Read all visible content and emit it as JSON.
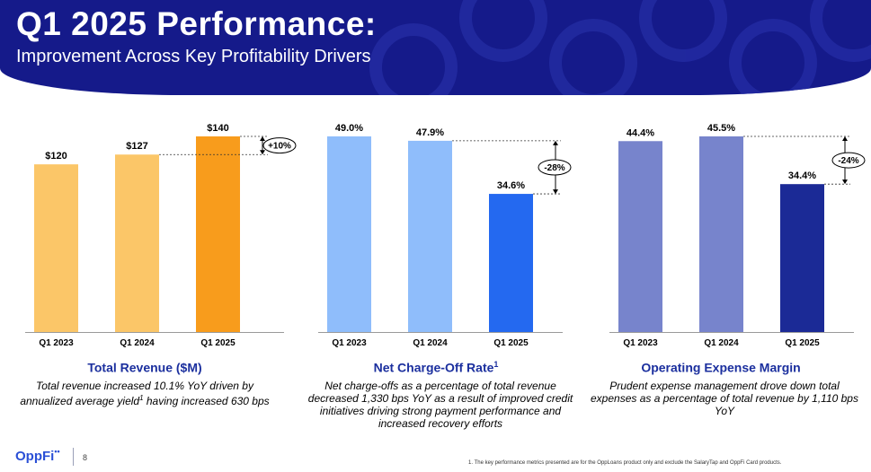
{
  "header": {
    "title": "Q1 2025 Performance:",
    "subtitle": "Improvement Across Key Profitability Drivers"
  },
  "chart_data": [
    {
      "type": "bar",
      "title": "Total Revenue ($M)",
      "title_sup": "",
      "categories": [
        "Q1 2023",
        "Q1 2024",
        "Q1 2025"
      ],
      "values": [
        120,
        127,
        140
      ],
      "labels": [
        "$120",
        "$127",
        "$140"
      ],
      "colors": [
        "#fbc668",
        "#fbc668",
        "#f89c1c"
      ],
      "change_label": "+10%",
      "change_from": 1,
      "change_to": 2,
      "ylim": [
        0,
        140
      ],
      "description_parts": [
        "Total revenue increased 10.1% YoY driven by annualized average yield",
        "1",
        " having increased 630 bps"
      ]
    },
    {
      "type": "bar",
      "title": "Net Charge-Off Rate",
      "title_sup": "1",
      "categories": [
        "Q1 2023",
        "Q1 2024",
        "Q1 2025"
      ],
      "values": [
        49.0,
        47.9,
        34.6
      ],
      "labels": [
        "49.0%",
        "47.9%",
        "34.6%"
      ],
      "colors": [
        "#8fbdfb",
        "#8fbdfb",
        "#2469f0"
      ],
      "change_label": "-28%",
      "change_from": 1,
      "change_to": 2,
      "ylim": [
        0,
        49.0
      ],
      "description_parts": [
        "Net charge-offs as a percentage of total revenue decreased 1,330 bps YoY as a result of improved credit initiatives driving strong payment performance and increased recovery efforts",
        "",
        ""
      ]
    },
    {
      "type": "bar",
      "title": "Operating Expense Margin",
      "title_sup": "",
      "categories": [
        "Q1 2023",
        "Q1 2024",
        "Q1 2025"
      ],
      "values": [
        44.4,
        45.5,
        34.4
      ],
      "labels": [
        "44.4%",
        "45.5%",
        "34.4%"
      ],
      "colors": [
        "#7784cc",
        "#7784cc",
        "#1b2a96"
      ],
      "change_label": "-24%",
      "change_from": 1,
      "change_to": 2,
      "ylim": [
        0,
        45.5
      ],
      "description_parts": [
        "Prudent expense management drove down total expenses as a percentage of total revenue by 1,110 bps YoY",
        "",
        ""
      ]
    }
  ],
  "footer": {
    "logo_text": "OppFi",
    "logo_dots": "••",
    "page_number": "8",
    "footnote": "1.   The key performance metrics presented are for the OppLoans product only and exclude the SalaryTap and OppFi Card products."
  },
  "colors": {
    "banner": "#151a8a",
    "caption_title": "#1b2f9e"
  }
}
